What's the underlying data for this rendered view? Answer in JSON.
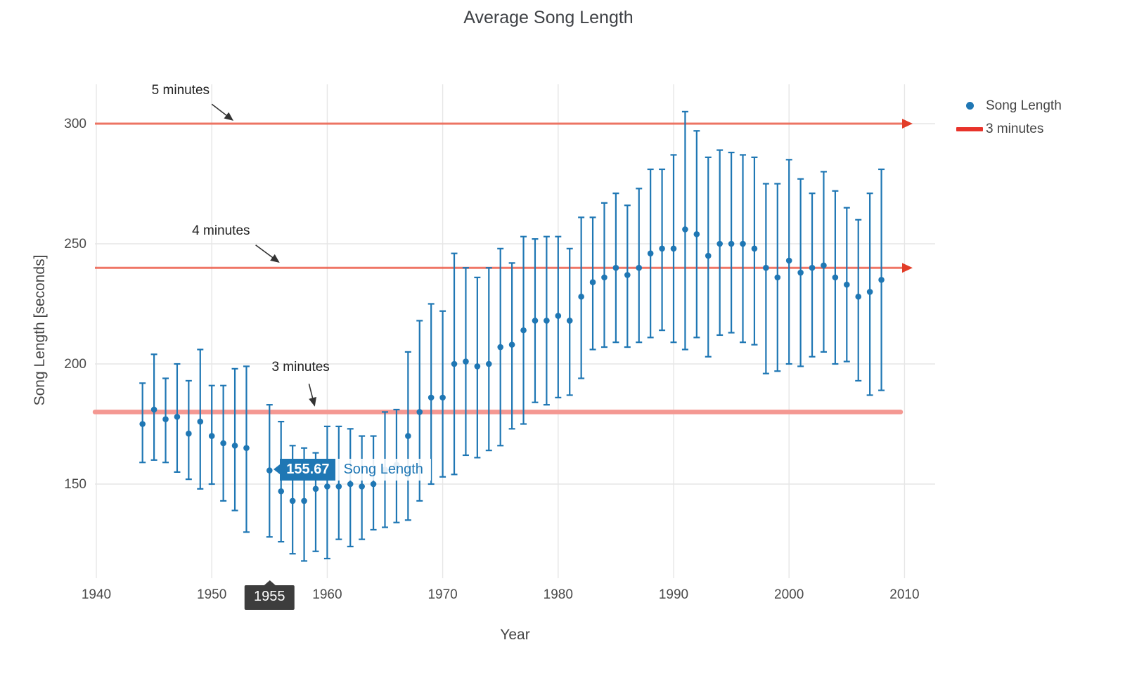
{
  "chart_data": {
    "type": "scatter",
    "title": "Average Song Length",
    "xlabel": "Year",
    "ylabel": "Song Length [seconds]",
    "xlim": [
      1939.9,
      2012.7
    ],
    "ylim": [
      111,
      316
    ],
    "x_ticks": [
      1940,
      1950,
      1960,
      1970,
      1980,
      1990,
      2000,
      2010
    ],
    "y_ticks": [
      150,
      200,
      250,
      300
    ],
    "grid": true,
    "legend_position": "top-right",
    "colors": {
      "series_blue": "#1f77b4",
      "ref_line_red": "#ed5f4c",
      "ref_arrowhead_red": "#e23d28",
      "thick_line_pink": "#f49892",
      "legend_swatch_red": "#e8332a",
      "hover_tag_dark": "#3d3d3d",
      "grid_gray": "#e6e6e6"
    },
    "series": [
      {
        "name": "Song Length",
        "type": "scatter-with-error-bars",
        "color": "#1f77b4",
        "points_format": [
          "year",
          "seconds",
          "error_low",
          "error_high"
        ],
        "points": [
          [
            1944,
            175,
            159,
            192
          ],
          [
            1945,
            181,
            160,
            204
          ],
          [
            1946,
            177,
            159,
            194
          ],
          [
            1947,
            178,
            155,
            200
          ],
          [
            1948,
            171,
            152,
            193
          ],
          [
            1949,
            176,
            148,
            206
          ],
          [
            1950,
            170,
            150,
            191
          ],
          [
            1951,
            167,
            143,
            191
          ],
          [
            1952,
            166,
            139,
            198
          ],
          [
            1953,
            165,
            130,
            199
          ],
          [
            1955,
            155.67,
            128,
            183
          ],
          [
            1956,
            147,
            126,
            176
          ],
          [
            1957,
            143,
            121,
            166
          ],
          [
            1958,
            143,
            118,
            165
          ],
          [
            1959,
            148,
            122,
            163
          ],
          [
            1960,
            149,
            119,
            174
          ],
          [
            1961,
            149,
            127,
            174
          ],
          [
            1962,
            150,
            124,
            173
          ],
          [
            1963,
            149,
            127,
            170
          ],
          [
            1964,
            150,
            131,
            170
          ],
          [
            1965,
            156,
            132,
            180
          ],
          [
            1966,
            158,
            134,
            181
          ],
          [
            1967,
            170,
            135,
            205
          ],
          [
            1968,
            180,
            143,
            218
          ],
          [
            1969,
            186,
            150,
            225
          ],
          [
            1970,
            186,
            153,
            222
          ],
          [
            1971,
            200,
            154,
            246
          ],
          [
            1972,
            201,
            162,
            240
          ],
          [
            1973,
            199,
            161,
            236
          ],
          [
            1974,
            200,
            164,
            240
          ],
          [
            1975,
            207,
            166,
            248
          ],
          [
            1976,
            208,
            173,
            242
          ],
          [
            1977,
            214,
            175,
            253
          ],
          [
            1978,
            218,
            184,
            252
          ],
          [
            1979,
            218,
            183,
            253
          ],
          [
            1980,
            220,
            186,
            253
          ],
          [
            1981,
            218,
            187,
            248
          ],
          [
            1982,
            228,
            194,
            261
          ],
          [
            1983,
            234,
            206,
            261
          ],
          [
            1984,
            236,
            207,
            267
          ],
          [
            1985,
            240,
            209,
            271
          ],
          [
            1986,
            237,
            207,
            266
          ],
          [
            1987,
            240,
            209,
            273
          ],
          [
            1988,
            246,
            211,
            281
          ],
          [
            1989,
            248,
            214,
            281
          ],
          [
            1990,
            248,
            209,
            287
          ],
          [
            1991,
            256,
            206,
            305
          ],
          [
            1992,
            254,
            211,
            297
          ],
          [
            1993,
            245,
            203,
            286
          ],
          [
            1994,
            250,
            212,
            289
          ],
          [
            1995,
            250,
            213,
            288
          ],
          [
            1996,
            250,
            209,
            287
          ],
          [
            1997,
            248,
            208,
            286
          ],
          [
            1998,
            240,
            196,
            275
          ],
          [
            1999,
            236,
            197,
            275
          ],
          [
            2000,
            243,
            200,
            285
          ],
          [
            2001,
            238,
            199,
            277
          ],
          [
            2002,
            240,
            203,
            271
          ],
          [
            2003,
            241,
            205,
            280
          ],
          [
            2004,
            236,
            200,
            272
          ],
          [
            2005,
            233,
            201,
            265
          ],
          [
            2006,
            228,
            193,
            260
          ],
          [
            2007,
            230,
            187,
            271
          ],
          [
            2008,
            235,
            189,
            281
          ]
        ]
      }
    ],
    "reference_lines": [
      {
        "label": "5 minutes",
        "y": 300,
        "style": "thin-arrow",
        "color": "#ed5f4c"
      },
      {
        "label": "4 minutes",
        "y": 240,
        "style": "thin-arrow",
        "color": "#ed5f4c"
      },
      {
        "label": "3 minutes",
        "y": 180,
        "style": "thick",
        "color": "#f49892"
      }
    ],
    "annotations": [
      {
        "text": "5 minutes",
        "arrow_tip": [
          1951.8,
          301.5
        ],
        "text_pos": [
          1947.3,
          314.0
        ]
      },
      {
        "text": "4 minutes",
        "arrow_tip": [
          1955.8,
          242.4
        ],
        "text_pos": [
          1950.8,
          255.6
        ]
      },
      {
        "text": "3 minutes",
        "arrow_tip": [
          1958.9,
          182.7
        ],
        "text_pos": [
          1957.7,
          198.8
        ]
      }
    ],
    "legend": [
      {
        "label": "Song Length",
        "marker": "dot",
        "color": "#1f77b4"
      },
      {
        "label": "3 minutes",
        "marker": "line",
        "color": "#e8332a"
      }
    ],
    "hover": {
      "x": 1955,
      "y": 155.67,
      "x_label": "1955",
      "value_text": "155.67",
      "series_label": "Song Length"
    }
  }
}
